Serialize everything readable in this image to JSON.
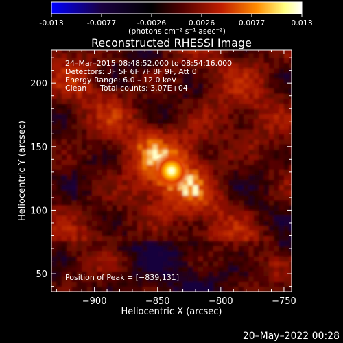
{
  "colorbar": {
    "ticks": [
      "-0.013",
      "-0.0077",
      "-0.0026",
      "0.0026",
      "0.0077",
      "0.013"
    ],
    "unit_label": "(photons cm⁻² s⁻¹ asec⁻²)",
    "colors": [
      "#0000ff",
      "#1a0040",
      "#000000",
      "#500000",
      "#c01e00",
      "#ff8c00",
      "#ffff80",
      "#ffffff"
    ]
  },
  "chart_data": {
    "type": "heatmap",
    "title": "Reconstructed RHESSI Image",
    "xlabel": "Heliocentric X (arcsec)",
    "ylabel": "Heliocentric Y (arcsec)",
    "xlim": [
      -934,
      -744
    ],
    "ylim": [
      36,
      226
    ],
    "xticks": [
      -900,
      -850,
      -800,
      -750
    ],
    "yticks": [
      50,
      100,
      150,
      200
    ],
    "xtick_labels": [
      "−900",
      "−850",
      "−800",
      "−750"
    ],
    "ytick_labels": [
      "50",
      "100",
      "150",
      "200"
    ],
    "vmin": -0.013,
    "vmax": 0.013,
    "peak": {
      "x": -839,
      "y": 131,
      "value": 0.013
    },
    "annotations": {
      "time_range": "24–Mar–2015 08:48:52.000 to 08:54:16.000",
      "detectors": "Detectors: 3F 5F 6F 7F 8F 9F, Att 0",
      "energy": "Energy Range: 6.0 – 12.0 keV",
      "method": "Clean",
      "counts": "Total counts: 3.07E+04",
      "peak_position": "Position of Peak = [−839,131]"
    }
  },
  "footer": {
    "date": "20–May–2022 00:28"
  }
}
